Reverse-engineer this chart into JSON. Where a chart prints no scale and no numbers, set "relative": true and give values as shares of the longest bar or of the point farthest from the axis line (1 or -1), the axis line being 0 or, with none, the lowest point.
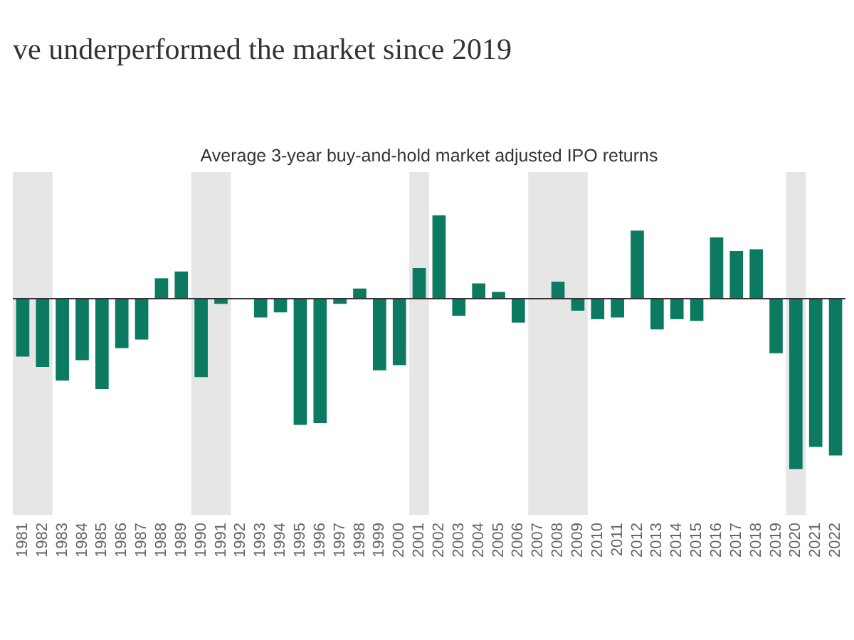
{
  "chart_data": {
    "type": "bar",
    "title": "ve underperformed the market since 2019",
    "subtitle": "Average 3-year buy-and-hold market adjusted IPO returns",
    "categories": [
      "1981",
      "1982",
      "1983",
      "1984",
      "1985",
      "1986",
      "1987",
      "1988",
      "1989",
      "1990",
      "1991",
      "1992",
      "1993",
      "1994",
      "1995",
      "1996",
      "1997",
      "1998",
      "1999",
      "2000",
      "2001",
      "2002",
      "2003",
      "2004",
      "2005",
      "2006",
      "2007",
      "2008",
      "2009",
      "2010",
      "2011",
      "2012",
      "2013",
      "2014",
      "2015",
      "2016",
      "2017",
      "2018",
      "2019",
      "2020",
      "2021",
      "2022"
    ],
    "values": [
      -0.34,
      -0.4,
      -0.48,
      -0.36,
      -0.53,
      -0.29,
      -0.24,
      0.12,
      0.16,
      -0.46,
      -0.03,
      0,
      -0.11,
      -0.08,
      -0.74,
      -0.73,
      -0.03,
      0.06,
      -0.42,
      -0.39,
      0.18,
      0.49,
      -0.1,
      0.09,
      0.04,
      -0.14,
      0,
      0.1,
      -0.07,
      -0.12,
      -0.11,
      0.4,
      -0.18,
      -0.12,
      -0.13,
      0.36,
      0.28,
      0.29,
      -0.32,
      -1,
      -0.87,
      -0.92
    ],
    "color": "#0b7a61",
    "relative": true,
    "bands": [
      {
        "axis": "x",
        "from": "1981",
        "to": "1982",
        "color": "#e6e6e6"
      },
      {
        "axis": "x",
        "from": "1990",
        "to": "1991",
        "color": "#e6e6e6"
      },
      {
        "axis": "x",
        "from": "2001",
        "to": "2001",
        "color": "#e6e6e6"
      },
      {
        "axis": "x",
        "from": "2007",
        "to": "2009",
        "color": "#e6e6e6"
      },
      {
        "axis": "x",
        "from": "2020",
        "to": "2020",
        "color": "#e6e6e6"
      }
    ]
  }
}
